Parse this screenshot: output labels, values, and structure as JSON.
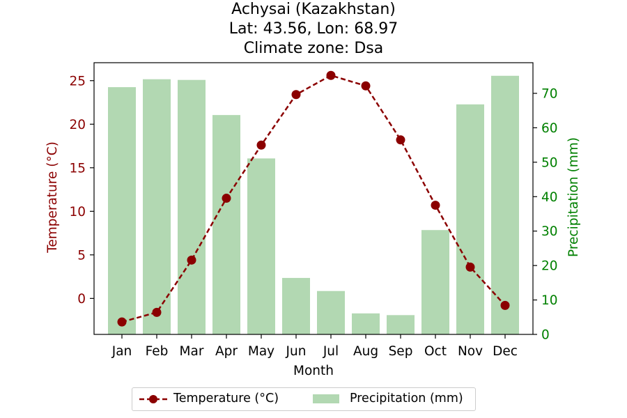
{
  "title_lines": [
    "Achysai (Kazakhstan)",
    "Lat: 43.56, Lon: 68.97",
    "Climate zone: Dsa"
  ],
  "chart_data": {
    "type": "bar+line",
    "categories": [
      "Jan",
      "Feb",
      "Mar",
      "Apr",
      "May",
      "Jun",
      "Jul",
      "Aug",
      "Sep",
      "Oct",
      "Nov",
      "Dec"
    ],
    "xlabel": "Month",
    "series": [
      {
        "name": "Temperature (°C)",
        "type": "line",
        "axis": "left",
        "color": "#8b0000",
        "linestyle": "dashed",
        "marker": "circle",
        "values": [
          -2.7,
          -1.6,
          4.4,
          11.5,
          17.6,
          23.4,
          25.6,
          24.4,
          18.2,
          10.7,
          3.6,
          -0.8
        ]
      },
      {
        "name": "Precipitation (mm)",
        "type": "bar",
        "axis": "right",
        "color": "#b2d8b2",
        "values": [
          71.8,
          74.1,
          73.9,
          63.7,
          51.1,
          16.4,
          12.6,
          6.1,
          5.6,
          30.3,
          66.8,
          75.1
        ]
      }
    ],
    "y_left": {
      "label": "Temperature (°C)",
      "color": "#8b0000",
      "ticks": [
        0,
        5,
        10,
        15,
        20,
        25
      ],
      "range": [
        -4.13,
        27.06
      ]
    },
    "y_right": {
      "label": "Precipitation (mm)",
      "color": "#008000",
      "ticks": [
        0,
        10,
        20,
        30,
        40,
        50,
        60,
        70
      ],
      "range": [
        0,
        78.9
      ]
    },
    "grid": false,
    "legend": "bottom-center"
  }
}
